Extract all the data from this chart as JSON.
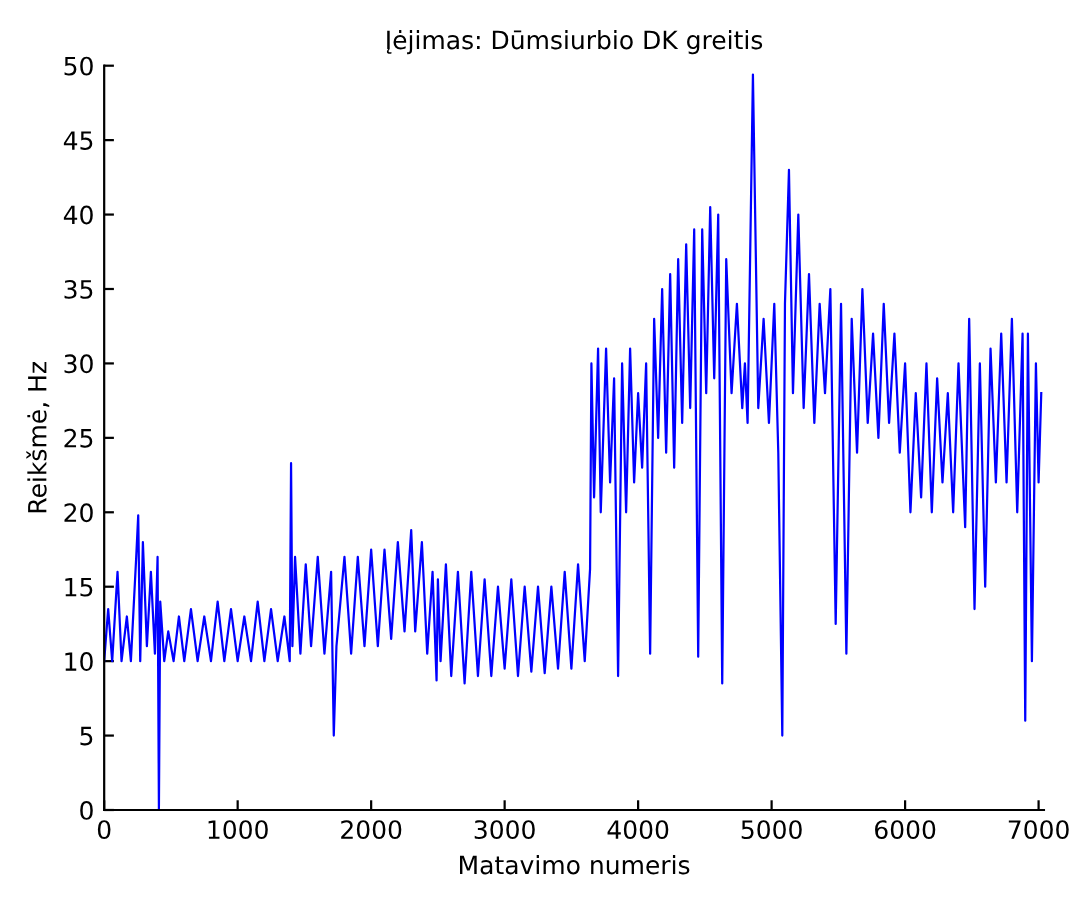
{
  "chart_data": {
    "type": "line",
    "title": "Įėjimas: Dūmsiurbio DK greitis",
    "xlabel": "Matavimo numeris",
    "ylabel": "Reikšmė, Hz",
    "xlim": [
      0,
      7040
    ],
    "ylim": [
      0,
      50
    ],
    "xticks": [
      0,
      1000,
      2000,
      3000,
      4000,
      5000,
      6000,
      7000
    ],
    "yticks": [
      0,
      5,
      10,
      15,
      20,
      25,
      30,
      35,
      40,
      45,
      50
    ],
    "grid": false,
    "marker": "none",
    "line_style": "solid",
    "series": [
      {
        "color": "#0000ff",
        "x": [
          0,
          30,
          60,
          100,
          130,
          170,
          200,
          240,
          255,
          270,
          290,
          320,
          350,
          380,
          400,
          410,
          420,
          450,
          480,
          520,
          560,
          600,
          650,
          700,
          750,
          800,
          850,
          900,
          950,
          1000,
          1050,
          1100,
          1150,
          1200,
          1250,
          1300,
          1350,
          1390,
          1400,
          1410,
          1430,
          1470,
          1510,
          1550,
          1600,
          1650,
          1700,
          1720,
          1740,
          1800,
          1850,
          1900,
          1950,
          2000,
          2050,
          2100,
          2150,
          2200,
          2250,
          2300,
          2330,
          2380,
          2420,
          2460,
          2490,
          2500,
          2520,
          2560,
          2600,
          2650,
          2700,
          2750,
          2800,
          2850,
          2900,
          2950,
          3000,
          3050,
          3100,
          3150,
          3200,
          3250,
          3300,
          3350,
          3400,
          3450,
          3500,
          3550,
          3600,
          3640,
          3650,
          3670,
          3700,
          3720,
          3760,
          3790,
          3820,
          3850,
          3880,
          3910,
          3940,
          3970,
          4000,
          4030,
          4060,
          4090,
          4120,
          4150,
          4180,
          4210,
          4240,
          4270,
          4300,
          4330,
          4360,
          4390,
          4420,
          4450,
          4480,
          4510,
          4540,
          4570,
          4600,
          4630,
          4660,
          4700,
          4740,
          4780,
          4800,
          4820,
          4860,
          4900,
          4940,
          4980,
          5020,
          5050,
          5080,
          5100,
          5130,
          5160,
          5200,
          5240,
          5280,
          5320,
          5360,
          5400,
          5440,
          5480,
          5520,
          5560,
          5600,
          5640,
          5680,
          5720,
          5760,
          5800,
          5840,
          5880,
          5920,
          5960,
          6000,
          6040,
          6080,
          6120,
          6160,
          6200,
          6240,
          6280,
          6320,
          6360,
          6400,
          6450,
          6480,
          6520,
          6560,
          6600,
          6640,
          6680,
          6720,
          6760,
          6800,
          6840,
          6880,
          6900,
          6920,
          6950,
          6980,
          7000,
          7020
        ],
        "values": [
          10,
          13.5,
          10,
          16,
          10,
          13,
          10,
          17,
          19.8,
          10,
          18,
          11,
          16,
          10.5,
          17,
          0,
          14,
          10,
          12,
          10,
          13,
          10,
          13.5,
          10,
          13,
          10,
          14,
          10,
          13.5,
          10,
          13,
          10,
          14,
          10,
          13.5,
          10,
          13,
          10,
          23.3,
          11,
          17,
          10.5,
          16.5,
          11,
          17,
          10.5,
          16,
          5,
          11,
          17,
          10.5,
          17,
          11,
          17.5,
          11,
          17.5,
          11.5,
          18,
          12,
          18.8,
          12,
          18,
          10.5,
          16,
          8.7,
          15.5,
          10,
          16.5,
          9,
          16,
          8.5,
          16,
          9,
          15.5,
          9,
          15,
          9.5,
          15.5,
          9,
          15,
          9.3,
          15,
          9.2,
          15,
          9.5,
          16,
          9.5,
          16.5,
          10,
          16.2,
          30,
          21,
          31,
          20,
          31,
          22,
          29,
          9,
          30,
          20,
          31,
          22,
          28,
          23,
          30,
          10.5,
          33,
          25,
          35,
          24,
          36,
          23,
          37,
          26,
          38,
          27,
          39,
          10.3,
          39,
          28,
          40.5,
          29,
          40,
          8.5,
          37,
          28,
          34,
          27,
          30,
          26,
          49.4,
          27,
          33,
          26,
          34,
          24,
          5,
          34,
          43,
          28,
          40,
          27,
          36,
          26,
          34,
          28,
          35,
          12.5,
          34,
          10.5,
          33,
          24,
          35,
          26,
          32,
          25,
          34,
          26,
          32,
          24,
          30,
          20,
          28,
          21,
          30,
          20,
          29,
          22,
          28,
          20,
          30,
          19,
          33,
          13.5,
          30,
          15,
          31,
          22,
          32,
          22,
          33,
          20,
          32,
          6,
          32,
          10,
          30,
          22,
          28
        ]
      }
    ]
  }
}
